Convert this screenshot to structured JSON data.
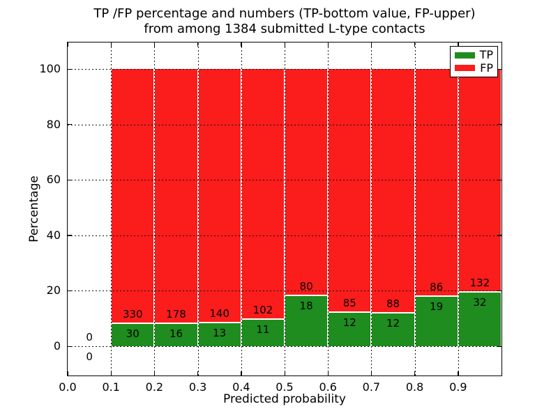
{
  "title": {
    "line1": "TP /FP percentage and numbers (TP-bottom value, FP-upper)",
    "line2": "from among 1384 submitted L-type contacts"
  },
  "axes": {
    "xlabel": "Predicted probability",
    "ylabel": "Percentage",
    "x_tick_labels": [
      "0.0",
      "0.1",
      "0.2",
      "0.3",
      "0.4",
      "0.5",
      "0.6",
      "0.7",
      "0.8",
      "0.9"
    ],
    "x_tick_values": [
      0.0,
      0.1,
      0.2,
      0.3,
      0.4,
      0.5,
      0.6,
      0.7,
      0.8,
      0.9
    ],
    "y_tick_labels": [
      "0",
      "20",
      "40",
      "60",
      "80",
      "100"
    ],
    "y_tick_values": [
      0,
      20,
      40,
      60,
      80,
      100
    ],
    "xlim": [
      0.0,
      1.0
    ],
    "ylim": [
      -10.5,
      109.5
    ],
    "grid": "dotted black, drawn over bars"
  },
  "legend": {
    "position": "upper right",
    "items": [
      {
        "label": "TP",
        "color": "#1e8c1e"
      },
      {
        "label": "FP",
        "color": "#fb1c1c"
      }
    ]
  },
  "colors": {
    "tp_green": "#1e8c1e",
    "fp_red": "#fb1c1c",
    "bar_edge": "#ffffff",
    "background": "#ffffff",
    "text": "#000000"
  },
  "chart_data": {
    "type": "bar",
    "stacked": true,
    "title": "TP /FP percentage and numbers (TP-bottom value, FP-upper) from among 1384 submitted L-type contacts",
    "xlabel": "Predicted probability",
    "ylabel": "Percentage",
    "xlim": [
      0.0,
      1.0
    ],
    "ylim": [
      -10.5,
      109.5
    ],
    "legend_position": "upper right",
    "total_contacts": 1384,
    "bin_width": 0.1,
    "bin_starts": [
      0.0,
      0.1,
      0.2,
      0.3,
      0.4,
      0.5,
      0.6,
      0.7,
      0.8,
      0.9
    ],
    "series": [
      {
        "name": "TP",
        "color": "#1e8c1e",
        "counts": [
          0,
          30,
          16,
          13,
          11,
          18,
          12,
          12,
          19,
          32
        ],
        "pct": [
          0,
          8.33,
          8.25,
          8.5,
          9.73,
          18.37,
          12.37,
          12.0,
          18.1,
          19.51
        ]
      },
      {
        "name": "FP",
        "color": "#fb1c1c",
        "counts": [
          0,
          330,
          178,
          140,
          102,
          80,
          85,
          88,
          86,
          132
        ],
        "pct": [
          0,
          91.67,
          91.75,
          91.5,
          90.27,
          81.63,
          87.63,
          88.0,
          81.9,
          80.49
        ]
      }
    ],
    "annotation_scheme": "FP count printed just above the TP/FP boundary of each bar, TP count just below it; first bin (0.0-0.1) shows 0 and 0 with no bar"
  }
}
